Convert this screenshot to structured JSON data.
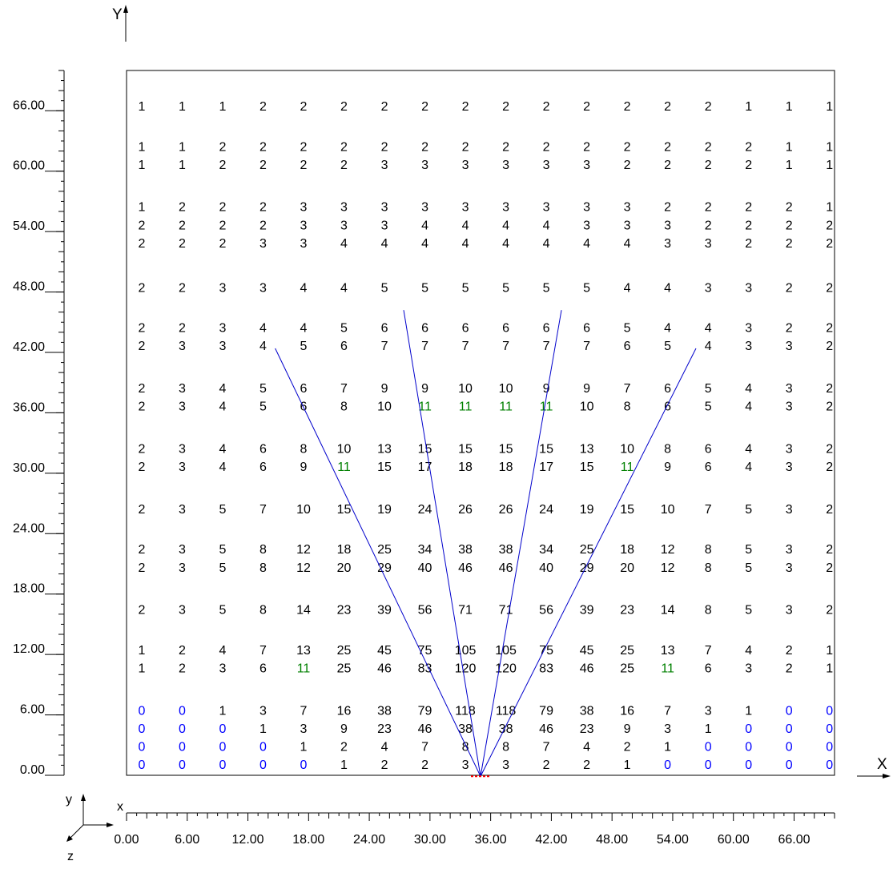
{
  "colors": {
    "text": "#000000",
    "zero": "#0000ff",
    "eleven": "#008000",
    "beam": "#0000cc",
    "source": "#ff0000",
    "frame": "#000000"
  },
  "axes": {
    "x_letter": "X",
    "y_letter": "Y",
    "x_ticks": [
      "0.00",
      "6.00",
      "12.00",
      "18.00",
      "24.00",
      "30.00",
      "36.00",
      "42.00",
      "48.00",
      "54.00",
      "60.00",
      "66.00"
    ],
    "y_ticks": [
      "0.00",
      "6.00",
      "12.00",
      "18.00",
      "24.00",
      "30.00",
      "36.00",
      "42.00",
      "48.00",
      "54.00",
      "60.00",
      "66.00"
    ],
    "range": [
      0,
      70
    ]
  },
  "triad": {
    "x": "x",
    "y": "y",
    "z": "z"
  },
  "grid": {
    "columns_x": [
      1.5,
      5.5,
      9.5,
      13.5,
      17.5,
      21.5,
      25.5,
      29.5,
      33.5,
      37.5,
      41.5,
      45.5,
      49.5,
      53.5,
      57.5,
      61.5,
      65.5,
      69.5
    ],
    "rows": [
      {
        "y": 66.5,
        "values": [
          1,
          1,
          1,
          2,
          2,
          2,
          2,
          2,
          2,
          2,
          2,
          2,
          2,
          2,
          2,
          1,
          1,
          1
        ]
      },
      {
        "y": 62.5,
        "values": [
          1,
          1,
          2,
          2,
          2,
          2,
          2,
          2,
          2,
          2,
          2,
          2,
          2,
          2,
          2,
          2,
          1,
          1
        ]
      },
      {
        "y": 60.7,
        "values": [
          1,
          1,
          2,
          2,
          2,
          2,
          3,
          3,
          3,
          3,
          3,
          3,
          2,
          2,
          2,
          2,
          1,
          1
        ]
      },
      {
        "y": 56.5,
        "values": [
          1,
          2,
          2,
          2,
          3,
          3,
          3,
          3,
          3,
          3,
          3,
          3,
          3,
          2,
          2,
          2,
          2,
          1
        ]
      },
      {
        "y": 54.7,
        "values": [
          2,
          2,
          2,
          2,
          3,
          3,
          3,
          4,
          4,
          4,
          4,
          3,
          3,
          3,
          2,
          2,
          2,
          2
        ]
      },
      {
        "y": 52.9,
        "values": [
          2,
          2,
          2,
          3,
          3,
          4,
          4,
          4,
          4,
          4,
          4,
          4,
          4,
          3,
          3,
          2,
          2,
          2
        ]
      },
      {
        "y": 48.5,
        "values": [
          2,
          2,
          3,
          3,
          4,
          4,
          5,
          5,
          5,
          5,
          5,
          5,
          4,
          4,
          3,
          3,
          2,
          2
        ]
      },
      {
        "y": 44.5,
        "values": [
          2,
          2,
          3,
          4,
          4,
          5,
          6,
          6,
          6,
          6,
          6,
          6,
          5,
          4,
          4,
          3,
          2,
          2
        ]
      },
      {
        "y": 42.7,
        "values": [
          2,
          3,
          3,
          4,
          5,
          6,
          7,
          7,
          7,
          7,
          7,
          7,
          6,
          5,
          4,
          3,
          3,
          2
        ]
      },
      {
        "y": 38.5,
        "values": [
          2,
          3,
          4,
          5,
          6,
          7,
          9,
          9,
          10,
          10,
          9,
          9,
          7,
          6,
          5,
          4,
          3,
          2
        ]
      },
      {
        "y": 36.7,
        "values": [
          2,
          3,
          4,
          5,
          6,
          8,
          10,
          11,
          11,
          11,
          11,
          10,
          8,
          6,
          5,
          4,
          3,
          2
        ]
      },
      {
        "y": 32.5,
        "values": [
          2,
          3,
          4,
          6,
          8,
          10,
          13,
          15,
          15,
          15,
          15,
          13,
          10,
          8,
          6,
          4,
          3,
          2
        ]
      },
      {
        "y": 30.7,
        "values": [
          2,
          3,
          4,
          6,
          9,
          11,
          15,
          17,
          18,
          18,
          17,
          15,
          11,
          9,
          6,
          4,
          3,
          2
        ]
      },
      {
        "y": 26.5,
        "values": [
          2,
          3,
          5,
          7,
          10,
          15,
          19,
          24,
          26,
          26,
          24,
          19,
          15,
          10,
          7,
          5,
          3,
          2
        ]
      },
      {
        "y": 22.5,
        "values": [
          2,
          3,
          5,
          8,
          12,
          18,
          25,
          34,
          38,
          38,
          34,
          25,
          18,
          12,
          8,
          5,
          3,
          2
        ]
      },
      {
        "y": 20.7,
        "values": [
          2,
          3,
          5,
          8,
          12,
          20,
          29,
          40,
          46,
          46,
          40,
          29,
          20,
          12,
          8,
          5,
          3,
          2
        ]
      },
      {
        "y": 16.5,
        "values": [
          2,
          3,
          5,
          8,
          14,
          23,
          39,
          56,
          71,
          71,
          56,
          39,
          23,
          14,
          8,
          5,
          3,
          2
        ]
      },
      {
        "y": 12.5,
        "values": [
          1,
          2,
          4,
          7,
          13,
          25,
          45,
          75,
          105,
          105,
          75,
          45,
          25,
          13,
          7,
          4,
          2,
          1
        ]
      },
      {
        "y": 10.7,
        "values": [
          1,
          2,
          3,
          6,
          11,
          25,
          46,
          83,
          120,
          120,
          83,
          46,
          25,
          11,
          6,
          3,
          2,
          1
        ]
      },
      {
        "y": 6.5,
        "values": [
          0,
          0,
          1,
          3,
          7,
          16,
          38,
          79,
          118,
          118,
          79,
          38,
          16,
          7,
          3,
          1,
          0,
          0
        ]
      },
      {
        "y": 4.7,
        "values": [
          0,
          0,
          0,
          1,
          3,
          9,
          23,
          46,
          38,
          38,
          46,
          23,
          9,
          3,
          1,
          0,
          0,
          0
        ]
      },
      {
        "y": 2.9,
        "values": [
          0,
          0,
          0,
          0,
          1,
          2,
          4,
          7,
          8,
          8,
          7,
          4,
          2,
          1,
          0,
          0,
          0,
          0
        ]
      },
      {
        "y": 1.1,
        "values": [
          0,
          0,
          0,
          0,
          0,
          1,
          2,
          2,
          3,
          3,
          2,
          2,
          1,
          0,
          0,
          0,
          0,
          0
        ]
      }
    ]
  },
  "beams": {
    "source": [
      35,
      -0.1
    ],
    "ends": [
      [
        14.7,
        42.4
      ],
      [
        27.4,
        46.2
      ],
      [
        43.0,
        46.2
      ],
      [
        56.3,
        42.4
      ]
    ]
  }
}
